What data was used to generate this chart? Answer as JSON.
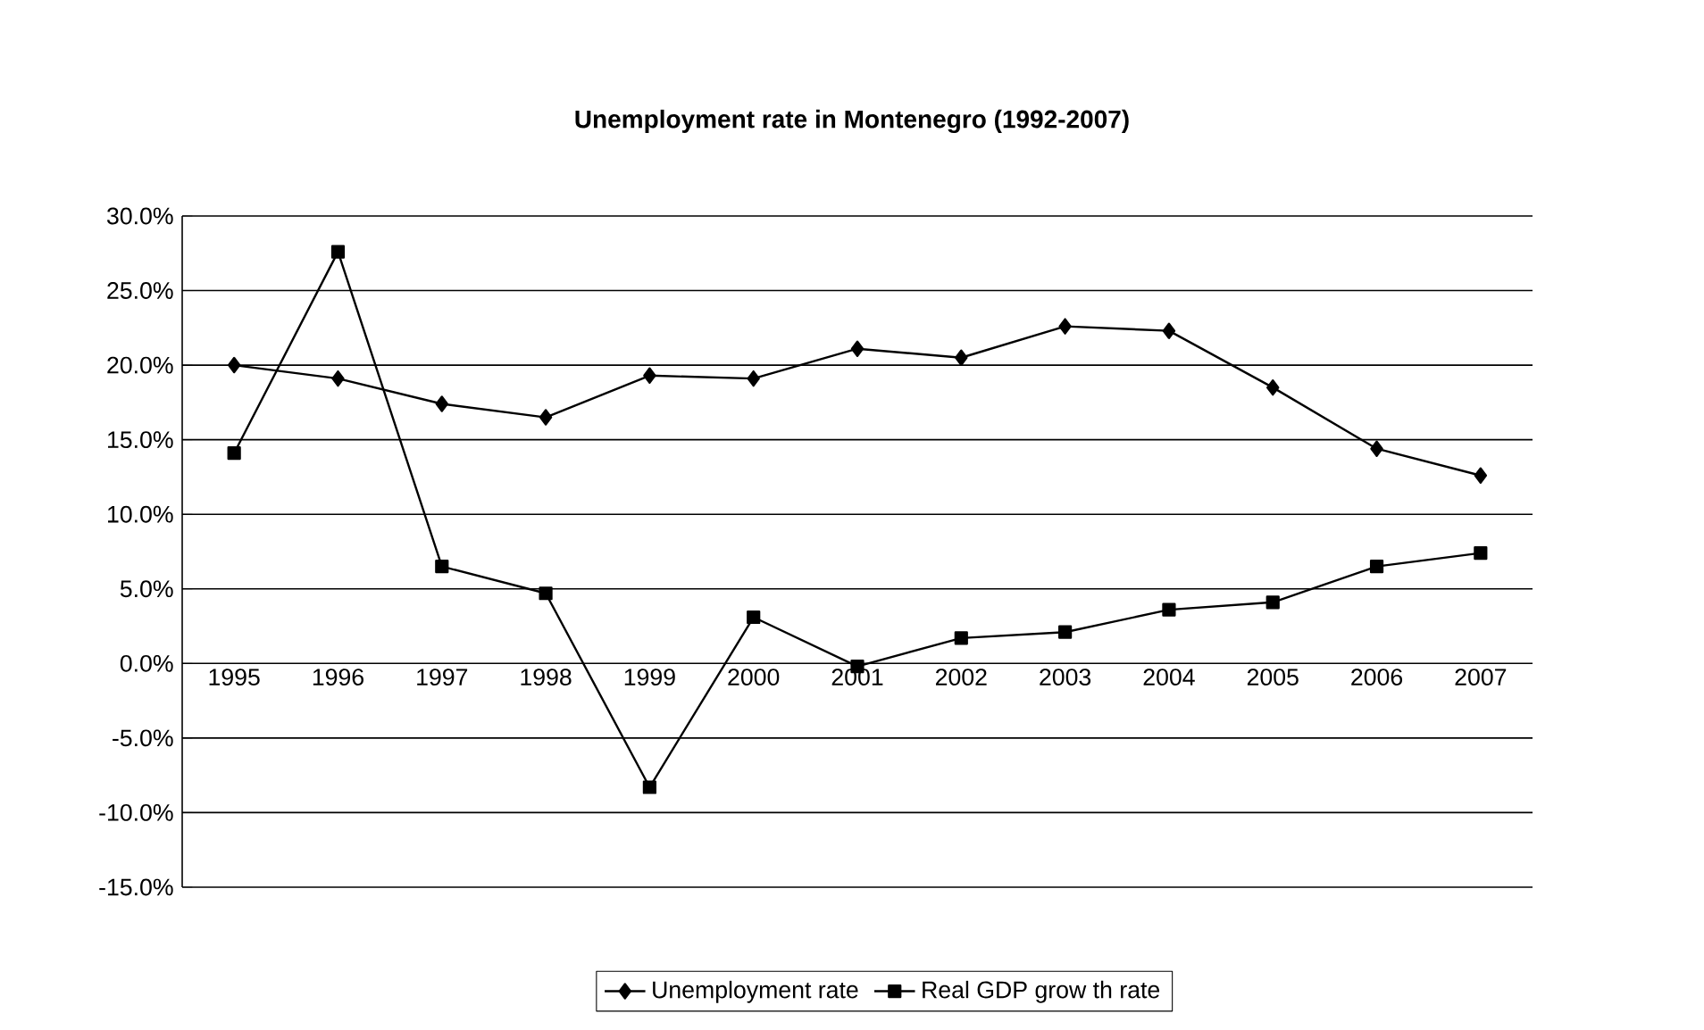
{
  "chart_data": {
    "type": "line",
    "title": "Unemployment rate in Montenegro (1992-2007)",
    "categories": [
      "1995",
      "1996",
      "1997",
      "1998",
      "1999",
      "2000",
      "2001",
      "2002",
      "2003",
      "2004",
      "2005",
      "2006",
      "2007"
    ],
    "series": [
      {
        "name": "Unemployment rate",
        "color": "#000000",
        "marker": "diamond",
        "values": [
          20.0,
          19.1,
          17.4,
          16.5,
          19.3,
          19.1,
          21.1,
          20.5,
          22.6,
          22.3,
          18.5,
          14.4,
          12.6
        ]
      },
      {
        "name": "Real GDP grow th rate",
        "color": "#000000",
        "marker": "square",
        "values": [
          14.1,
          27.6,
          6.5,
          4.7,
          -8.3,
          3.1,
          -0.2,
          1.7,
          2.1,
          3.6,
          4.1,
          6.5,
          7.4
        ]
      }
    ],
    "ylim": [
      -15,
      30
    ],
    "yticks": [
      {
        "value": -15,
        "label": "-15.0%"
      },
      {
        "value": -10,
        "label": "-10.0%"
      },
      {
        "value": -5,
        "label": "-5.0%"
      },
      {
        "value": 0,
        "label": "0.0%"
      },
      {
        "value": 5,
        "label": "5.0%"
      },
      {
        "value": 10,
        "label": "10.0%"
      },
      {
        "value": 15,
        "label": "15.0%"
      },
      {
        "value": 20,
        "label": "20.0%"
      },
      {
        "value": 25,
        "label": "25.0%"
      },
      {
        "value": 30,
        "label": "30.0%"
      }
    ],
    "grid": "y",
    "legend": "bottom",
    "line_style": "solid"
  }
}
